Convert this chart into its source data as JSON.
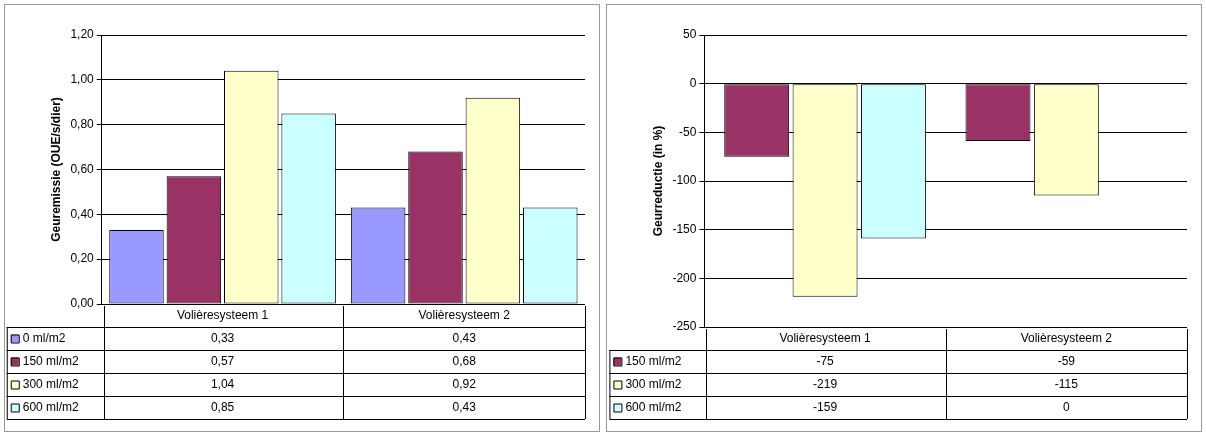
{
  "chart_data": [
    {
      "type": "bar",
      "ylabel": "Geuremissie (OUE/s/dier)",
      "categories": [
        "Volièresysteem 1",
        "Volièresysteem 2"
      ],
      "series": [
        {
          "name": "0 ml/m2",
          "color": "#9999ff",
          "values": [
            0.33,
            0.43
          ],
          "value_labels": [
            "0,33",
            "0,43"
          ]
        },
        {
          "name": "150 ml/m2",
          "color": "#993366",
          "values": [
            0.57,
            0.68
          ],
          "value_labels": [
            "0,57",
            "0,68"
          ]
        },
        {
          "name": "300 ml/m2",
          "color": "#ffffcc",
          "values": [
            1.04,
            0.92
          ],
          "value_labels": [
            "1,04",
            "0,92"
          ]
        },
        {
          "name": "600 ml/m2",
          "color": "#ccffff",
          "values": [
            0.85,
            0.43
          ],
          "value_labels": [
            "0,85",
            "0,43"
          ]
        }
      ],
      "ylim": [
        0,
        1.2
      ],
      "yticks": [
        {
          "value": 0,
          "label": "0,00"
        },
        {
          "value": 0.2,
          "label": "0,20"
        },
        {
          "value": 0.4,
          "label": "0,40"
        },
        {
          "value": 0.6,
          "label": "0,60"
        },
        {
          "value": 0.8,
          "label": "0,80"
        },
        {
          "value": 1,
          "label": "1,00"
        },
        {
          "value": 1.2,
          "label": "1,20"
        }
      ],
      "grid": "y",
      "legend": "bottom"
    },
    {
      "type": "bar",
      "ylabel": "Geurreductie (in %)",
      "categories": [
        "Volièresysteem 1",
        "Volièresysteem 2"
      ],
      "series": [
        {
          "name": "150 ml/m2",
          "color": "#993366",
          "values": [
            -75,
            -59
          ],
          "value_labels": [
            "-75",
            "-59"
          ]
        },
        {
          "name": "300 ml/m2",
          "color": "#ffffcc",
          "values": [
            -219,
            -115
          ],
          "value_labels": [
            "-219",
            "-115"
          ]
        },
        {
          "name": "600 ml/m2",
          "color": "#ccffff",
          "values": [
            -159,
            0
          ],
          "value_labels": [
            "-159",
            "0"
          ]
        }
      ],
      "ylim": [
        -250,
        50
      ],
      "yticks": [
        -250,
        -200,
        -150,
        -100,
        -50,
        0,
        50
      ],
      "grid": "y",
      "legend": "bottom"
    }
  ]
}
